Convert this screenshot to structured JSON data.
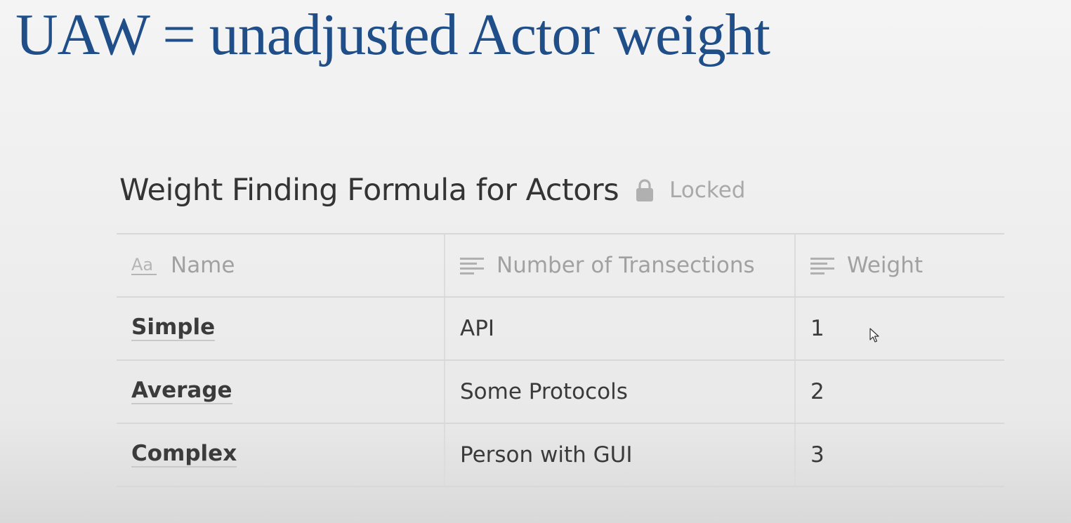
{
  "slide": {
    "title": "UAW = unadjusted Actor weight"
  },
  "database": {
    "title": "Weight Finding Formula for Actors",
    "lock_icon": "lock-icon",
    "status": "Locked",
    "columns": [
      {
        "label": "Name",
        "icon": "title-property-icon"
      },
      {
        "label": "Number of Transections",
        "icon": "text-property-icon"
      },
      {
        "label": "Weight",
        "icon": "text-property-icon"
      }
    ],
    "rows": [
      {
        "name": "Simple",
        "transactions": "API",
        "weight": "1"
      },
      {
        "name": "Average",
        "transactions": "Some Protocols",
        "weight": "2"
      },
      {
        "name": "Complex",
        "transactions": "Person with GUI",
        "weight": "3"
      }
    ]
  },
  "colors": {
    "title_blue": "#1f4e89",
    "text_dark": "#343434",
    "text_muted": "#a1a1a1",
    "border": "#d8d8d8"
  }
}
